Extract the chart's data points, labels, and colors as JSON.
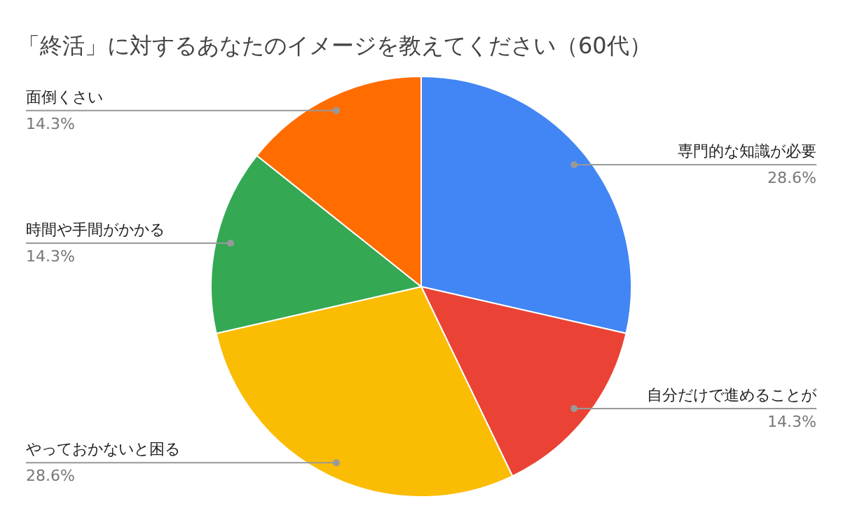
{
  "chart_data": {
    "type": "pie",
    "title": "「終活」に対するあなたのイメージを教えてください（60代）",
    "categories": [
      "専門的な知識が必要",
      "自分だけで進めることが",
      "やっておかないと困る",
      "時間や手間がかかる",
      "面倒くさい"
    ],
    "values": [
      28.6,
      14.3,
      28.6,
      14.3,
      14.3
    ],
    "colors": [
      "#4285f4",
      "#ea4335",
      "#fbbc04",
      "#34a853",
      "#ff6d01"
    ],
    "value_labels": [
      "28.6%",
      "14.3%",
      "28.6%",
      "14.3%",
      "14.3%"
    ]
  }
}
